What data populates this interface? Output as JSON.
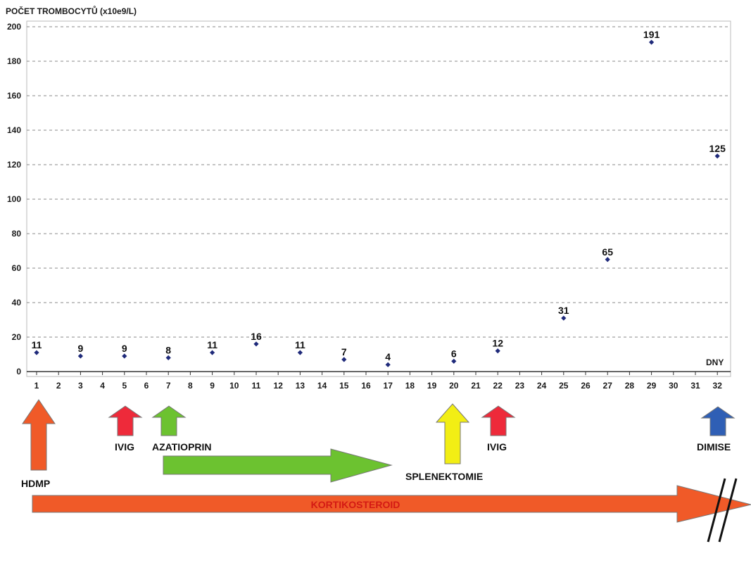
{
  "chart_data": {
    "type": "scatter",
    "title": "POČET TROMBOCYTŮ  (x10e9/L)",
    "xlabel": "DNY",
    "ylabel": "",
    "xlim": [
      1,
      32
    ],
    "ylim": [
      0,
      200
    ],
    "y_ticks": [
      0,
      20,
      40,
      60,
      80,
      100,
      120,
      140,
      160,
      180,
      200
    ],
    "x_tick_labels": [
      "1",
      "2",
      "3",
      "4",
      "5",
      "6",
      "7",
      "8",
      "9",
      "10",
      "11",
      "12",
      "13",
      "14",
      "15",
      "16",
      "17",
      "18",
      "19",
      "20",
      "21",
      "22",
      "23",
      "24",
      "25",
      "26",
      "27",
      "28",
      "29",
      "30",
      "31",
      "32"
    ],
    "grid": true,
    "series": [
      {
        "x": [
          1,
          3,
          5,
          7,
          9,
          11,
          13,
          15,
          17,
          20,
          22,
          25,
          27,
          29,
          32
        ],
        "values": [
          11,
          9,
          9,
          8,
          11,
          16,
          11,
          7,
          4,
          6,
          12,
          31,
          65,
          191,
          125
        ],
        "labels": [
          "11",
          "9",
          "9",
          "8",
          "11",
          "16",
          "11",
          "7",
          "4",
          "6",
          "12",
          "31",
          "65",
          "191",
          "125"
        ],
        "color": "#1f2a7a"
      }
    ]
  },
  "treatments": {
    "arrows": [
      {
        "label": "HDMP",
        "day": 1,
        "color": "#f05a28"
      },
      {
        "label": "IVIG",
        "day": 5,
        "color": "#ee2a3a"
      },
      {
        "label": "AZATIOPRIN",
        "day": 7,
        "color": "#6cc230"
      },
      {
        "label": "SPLENEKTOMIE",
        "day": 20,
        "color": "#f2ee14"
      },
      {
        "label": "IVIG",
        "day": 22,
        "color": "#ee2a3a"
      },
      {
        "label": "DIMISE",
        "day": 32,
        "color": "#2f5fb5"
      }
    ],
    "bars": [
      {
        "name": "azatioprin",
        "label": "",
        "from_day": 7,
        "to_day": 17,
        "color": "#6cc230"
      },
      {
        "name": "kortikosteroid",
        "label": "KORTIKOSTEROID",
        "from_day": 1,
        "to_day": 32,
        "color": "#f05a28"
      }
    ]
  },
  "colors": {
    "grid": "#888888",
    "axis": "#333333",
    "outline": "#888888"
  }
}
